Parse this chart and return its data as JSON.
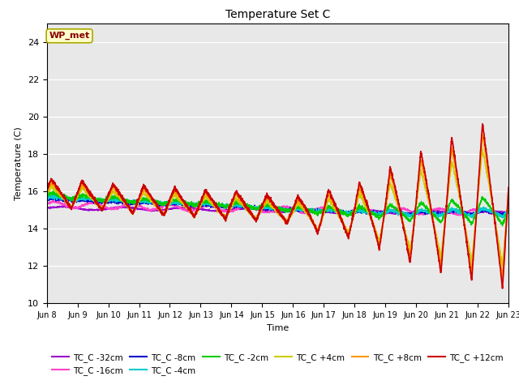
{
  "title": "Temperature Set C",
  "xlabel": "Time",
  "ylabel": "Temperature (C)",
  "ylim": [
    10,
    25
  ],
  "yticks": [
    10,
    12,
    14,
    16,
    18,
    20,
    22,
    24
  ],
  "xlim_days": [
    0,
    15
  ],
  "series": [
    {
      "label": "TC_C -32cm",
      "color": "#9900cc",
      "linewidth": 1.0
    },
    {
      "label": "TC_C -16cm",
      "color": "#ff44cc",
      "linewidth": 1.0
    },
    {
      "label": "TC_C -8cm",
      "color": "#0000cc",
      "linewidth": 1.0
    },
    {
      "label": "TC_C -4cm",
      "color": "#00cccc",
      "linewidth": 1.0
    },
    {
      "label": "TC_C -2cm",
      "color": "#00cc00",
      "linewidth": 1.0
    },
    {
      "label": "TC_C +4cm",
      "color": "#cccc00",
      "linewidth": 1.0
    },
    {
      "label": "TC_C +8cm",
      "color": "#ff9900",
      "linewidth": 1.3
    },
    {
      "label": "TC_C +12cm",
      "color": "#cc0000",
      "linewidth": 1.3
    }
  ],
  "annotation_text": "WP_met",
  "annotation_color": "#880000",
  "annotation_bg": "#ffffcc",
  "background_color": "#e8e8e8",
  "xtick_labels": [
    "Jun 8",
    "Jun 9",
    "Jun 10",
    "Jun 11",
    "Jun 12",
    "Jun 13",
    "Jun 14",
    "Jun 15",
    "Jun 16",
    "Jun 17",
    "Jun 18",
    "Jun 19",
    "Jun 20",
    "Jun 21",
    "Jun 22",
    "Jun 23"
  ],
  "xtick_positions": [
    0,
    1,
    2,
    3,
    4,
    5,
    6,
    7,
    8,
    9,
    10,
    11,
    12,
    13,
    14,
    15
  ]
}
